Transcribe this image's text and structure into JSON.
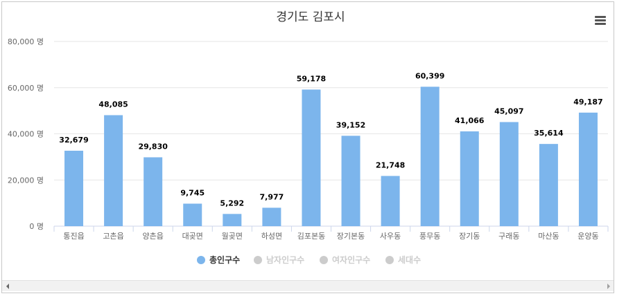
{
  "chart_data": {
    "type": "bar",
    "title": "경기도 김포시",
    "categories": [
      "통진읍",
      "고촌읍",
      "양촌읍",
      "대곶면",
      "월곶면",
      "하성면",
      "김포본동",
      "장기본동",
      "사우동",
      "풍무동",
      "장기동",
      "구래동",
      "마산동",
      "운양동"
    ],
    "series": [
      {
        "name": "총인구수",
        "values": [
          32679,
          48085,
          29830,
          9745,
          5292,
          7977,
          59178,
          39152,
          21748,
          60399,
          41066,
          45097,
          35614,
          49187
        ],
        "labels": [
          "32,679",
          "48,085",
          "29,830",
          "9,745",
          "5,292",
          "7,977",
          "59,178",
          "39,152",
          "21,748",
          "60,399",
          "41,066",
          "45,097",
          "35,614",
          "49,187"
        ],
        "color": "#7cb5ec",
        "visible": true
      },
      {
        "name": "남자인구수",
        "color": "#cccccc",
        "visible": false
      },
      {
        "name": "여자인구수",
        "color": "#cccccc",
        "visible": false
      },
      {
        "name": "세대수",
        "color": "#cccccc",
        "visible": false
      }
    ],
    "yticks": [
      "0 명",
      "20,000 명",
      "40,000 명",
      "60,000 명",
      "80,000 명"
    ],
    "ylim": [
      0,
      80000
    ],
    "grid": true,
    "legend": "bottom-center"
  },
  "icons": {
    "menu": "hamburger-menu-icon",
    "scroll_left": "arrow-left-icon",
    "scroll_right": "arrow-right-icon"
  }
}
